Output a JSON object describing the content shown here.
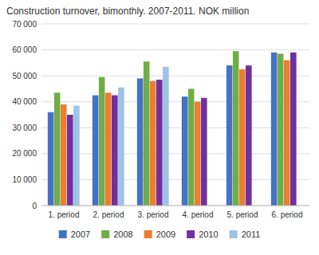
{
  "chart_data": {
    "type": "bar",
    "title": "Construction turnover, bimonthly. 2007-2011. NOK million",
    "categories": [
      "1. period",
      "2. period",
      "3. period",
      "4. period",
      "5. period",
      "6. period"
    ],
    "series": [
      {
        "name": "2007",
        "color": "#4472C4",
        "values": [
          36000,
          42500,
          49000,
          42000,
          54000,
          59000
        ]
      },
      {
        "name": "2008",
        "color": "#70AD47",
        "values": [
          43500,
          49500,
          55500,
          45000,
          59500,
          58500
        ]
      },
      {
        "name": "2009",
        "color": "#ED7D31",
        "values": [
          39000,
          43500,
          48000,
          40000,
          52500,
          56000
        ]
      },
      {
        "name": "2010",
        "color": "#7030A0",
        "values": [
          35000,
          42500,
          48500,
          41500,
          54000,
          59000
        ]
      },
      {
        "name": "2011",
        "color": "#9DC3E6",
        "values": [
          38500,
          45500,
          53500,
          0,
          0,
          0
        ]
      }
    ],
    "ylim": [
      0,
      70000
    ],
    "yticks": [
      0,
      {
        "value": 10000,
        "label": "10 000"
      },
      {
        "value": 20000,
        "label": "20 000"
      },
      {
        "value": 30000,
        "label": "30 000"
      },
      {
        "value": 40000,
        "label": "40 000"
      },
      {
        "value": 50000,
        "label": "50 000"
      },
      {
        "value": 60000,
        "label": "60 000"
      },
      {
        "value": 70000,
        "label": "70 000"
      }
    ],
    "grid": true,
    "legend": "bottom"
  }
}
